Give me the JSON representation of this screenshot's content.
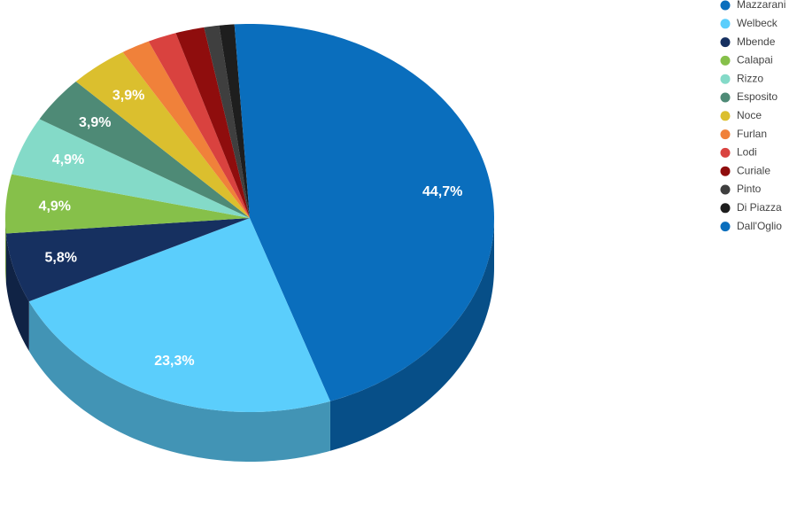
{
  "chart_data": {
    "type": "pie3d",
    "categories": [
      "Mazzarani",
      "Welbeck",
      "Mbende",
      "Calapai",
      "Rizzo",
      "Esposito",
      "Noce",
      "Furlan",
      "Lodi",
      "Curiale",
      "Pinto",
      "Di Piazza",
      "Dall'Oglio"
    ],
    "values": [
      44.7,
      23.3,
      5.8,
      4.9,
      4.9,
      3.9,
      3.9,
      1.9,
      1.9,
      1.9,
      1.0,
      1.0,
      1.0
    ],
    "value_labels": [
      "44,7%",
      "23,3%",
      "5,8%",
      "4,9%",
      "4,9%",
      "3,9%",
      "3,9%",
      null,
      null,
      null,
      null,
      null,
      null
    ],
    "colors": [
      "#0a6ebd",
      "#5bcefc",
      "#163060",
      "#86c04a",
      "#84dac8",
      "#4e8a76",
      "#dbbf2e",
      "#f0813a",
      "#d9423f",
      "#8f0d0d",
      "#3f3f3f",
      "#1e1e1e",
      "#0a6ebd"
    ]
  }
}
